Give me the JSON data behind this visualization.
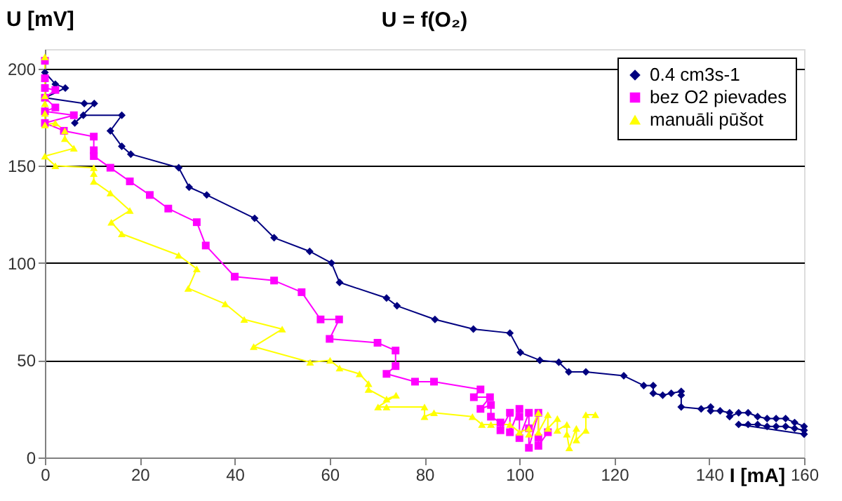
{
  "chart_data": {
    "type": "line",
    "title": "U = f(O₂)",
    "xlabel": "I [mA]",
    "ylabel": "U [mV]",
    "xlim": [
      0,
      160
    ],
    "xticks": [
      0,
      20,
      40,
      60,
      80,
      100,
      120,
      140,
      160
    ],
    "ylim": [
      0,
      210
    ],
    "yticks": [
      0,
      50,
      100,
      150,
      200
    ],
    "grid": "y",
    "legend": "top right",
    "series": [
      {
        "name": "0.4 cm3s-1",
        "color": "#000080",
        "marker": "diamond",
        "x": [
          0,
          2.2,
          4.3,
          0,
          8.3,
          10.4,
          6.3,
          8.1,
          16.2,
          13.8,
          16.2,
          18.1,
          28.2,
          30.4,
          34.1,
          44.2,
          48.3,
          55.8,
          60.4,
          62.1,
          72,
          74.2,
          82.2,
          90.3,
          98,
          100.2,
          104.3,
          108.3,
          110.4,
          114,
          122,
          126.2,
          128.2,
          128.2,
          130.2,
          132,
          134.1,
          134.1,
          134.1,
          138.3,
          140.3,
          140.3,
          142.3,
          144.3,
          144.3,
          146.2,
          148.2,
          150.2,
          152.2,
          154.1,
          156.1,
          158,
          160,
          160,
          158,
          156.1,
          154.1,
          152.2,
          150.2,
          148.2,
          146.2,
          160
        ],
        "values": [
          198,
          192,
          190,
          185,
          182,
          182,
          172,
          176,
          176,
          168,
          160,
          156,
          149,
          139,
          135,
          123,
          113,
          106,
          100,
          90,
          82,
          78,
          71,
          66,
          64,
          54,
          50,
          49,
          44,
          44,
          42,
          37,
          37,
          33,
          32,
          33,
          34,
          32,
          26,
          25,
          26,
          24,
          24,
          23,
          21,
          23,
          23,
          21,
          20,
          20,
          20,
          18,
          16,
          14,
          15,
          16,
          16,
          16,
          17,
          17,
          17,
          12
        ]
      },
      {
        "name": "bez O2 pievades",
        "color": "#ff00ff",
        "marker": "square",
        "x": [
          0,
          0,
          0,
          2.2,
          0,
          2.2,
          0,
          6.1,
          0,
          4,
          10.3,
          10.3,
          10.3,
          13.8,
          17.9,
          22.1,
          26,
          32,
          33.9,
          40,
          48.3,
          54.1,
          58.1,
          62,
          60,
          70.1,
          73.9,
          73.9,
          72,
          78,
          82,
          91.8,
          90.4,
          93.8,
          91.8,
          94,
          94,
          96,
          96,
          98,
          98,
          100,
          100,
          100,
          102,
          102,
          102,
          104,
          104,
          104,
          106
        ],
        "values": [
          204,
          195,
          190,
          189,
          185,
          180,
          178,
          176,
          172,
          168,
          165,
          158,
          155,
          149,
          142,
          135,
          128,
          121,
          109,
          93,
          91,
          85,
          71,
          71,
          61,
          59,
          55,
          47,
          43,
          39,
          39,
          35,
          31,
          31,
          25,
          27,
          21,
          18,
          14,
          23,
          13,
          25,
          21,
          10,
          23,
          15,
          5,
          23,
          10,
          6,
          13
        ]
      },
      {
        "name": "manuāli pūšot",
        "color": "#ffff00",
        "marker": "triangle",
        "x": [
          0,
          0,
          0,
          0,
          0,
          2.2,
          4.2,
          4.2,
          6.1,
          0,
          2.2,
          10.3,
          10.3,
          10.3,
          13.8,
          17.9,
          14,
          16.2,
          28.2,
          32,
          30.2,
          38,
          42,
          50,
          44,
          55.9,
          60.1,
          62.1,
          66.3,
          68.2,
          68.2,
          72,
          74,
          70.2,
          72,
          80,
          80,
          82,
          90.1,
          92.1,
          94,
          98,
          100,
          102,
          102,
          104,
          104,
          106,
          106,
          108,
          108,
          110,
          110,
          110.5,
          112,
          112,
          114,
          114,
          116
        ],
        "values": [
          206,
          186,
          182,
          177,
          171,
          172,
          168,
          164,
          159,
          155,
          150,
          149,
          146,
          142,
          136,
          127,
          121,
          115,
          104,
          97,
          87,
          79,
          71,
          66,
          57,
          49,
          50,
          46,
          43,
          38,
          35,
          30,
          32,
          26,
          26,
          26,
          21,
          23,
          21,
          17,
          17,
          17,
          13,
          15,
          12,
          23,
          13,
          22,
          15,
          20,
          14,
          17,
          12,
          5,
          15,
          9,
          14,
          22,
          22
        ]
      }
    ]
  }
}
